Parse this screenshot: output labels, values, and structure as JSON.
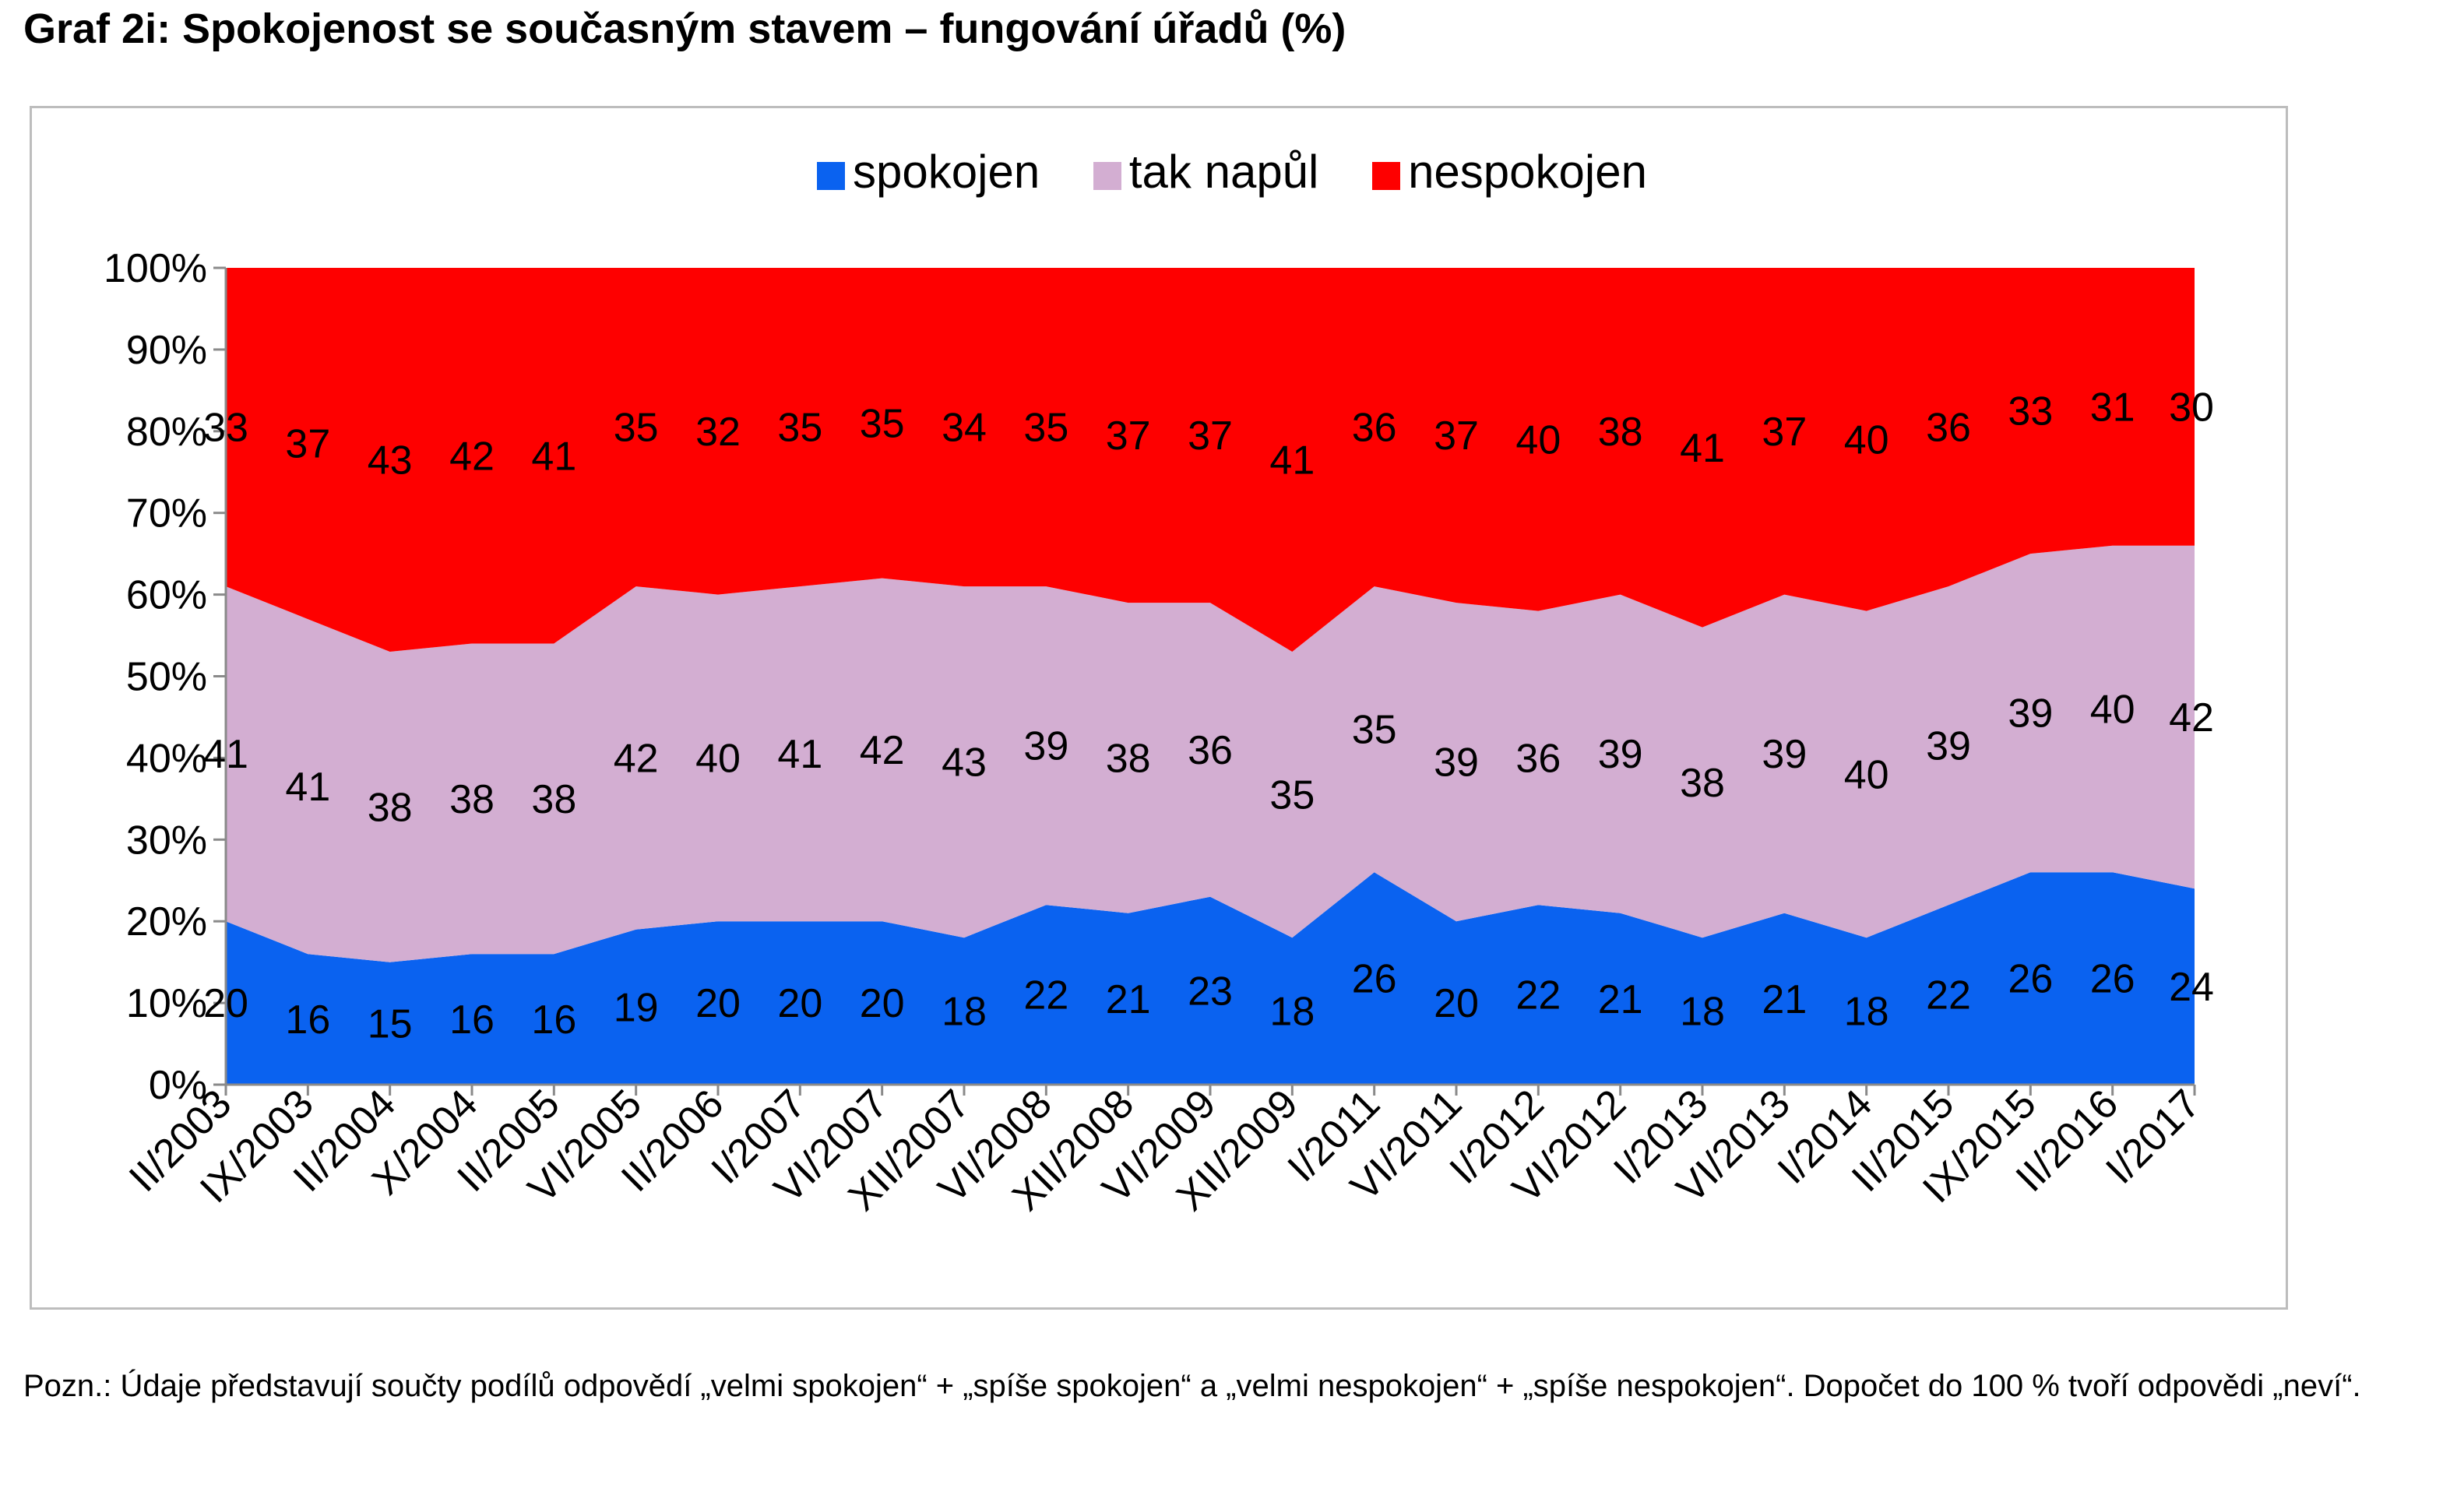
{
  "title": "Graf 2i: Spokojenost se současným stavem – fungování úřadů (%)",
  "note": "Pozn.: Údaje představují součty podílů odpovědí „velmi spokojen“ + „spíše spokojen“ a „velmi nespokojen“ + „spíše nespokojen“. Dopočet do 100 % tvoří odpovědi „neví“.",
  "chart_data": {
    "type": "area",
    "stacked": true,
    "categories": [
      "II/2003",
      "IX/2003",
      "II/2004",
      "X/2004",
      "II/2005",
      "VI/2005",
      "II/2006",
      "I/2007",
      "VI/2007",
      "XII/2007",
      "VI/2008",
      "XII/2008",
      "VI/2009",
      "XII/2009",
      "I/2011",
      "VI/2011",
      "I/2012",
      "VI/2012",
      "I/2013",
      "VI/2013",
      "I/2014",
      "II/2015",
      "IX/2015",
      "II/2016",
      "I/2017"
    ],
    "series": [
      {
        "name": "spokojen",
        "color": "#0a62f0",
        "values": [
          20,
          16,
          15,
          16,
          16,
          19,
          20,
          20,
          20,
          18,
          22,
          21,
          23,
          18,
          26,
          20,
          22,
          21,
          18,
          21,
          18,
          22,
          26,
          26,
          24
        ]
      },
      {
        "name": "tak napůl",
        "color": "#d3aed2",
        "values": [
          41,
          41,
          38,
          38,
          38,
          42,
          40,
          41,
          42,
          43,
          39,
          38,
          36,
          35,
          35,
          39,
          36,
          39,
          38,
          39,
          40,
          39,
          39,
          40,
          42
        ]
      },
      {
        "name": "nespokojen",
        "color": "#fe0000",
        "values": [
          33,
          37,
          43,
          42,
          41,
          35,
          32,
          35,
          35,
          34,
          35,
          37,
          37,
          41,
          36,
          37,
          40,
          38,
          41,
          37,
          40,
          36,
          33,
          31,
          30
        ]
      }
    ],
    "yticks": [
      "0%",
      "10%",
      "20%",
      "30%",
      "40%",
      "50%",
      "60%",
      "70%",
      "80%",
      "90%",
      "100%"
    ],
    "ylim": [
      0,
      100
    ],
    "legend": "top-center",
    "grid": false
  }
}
